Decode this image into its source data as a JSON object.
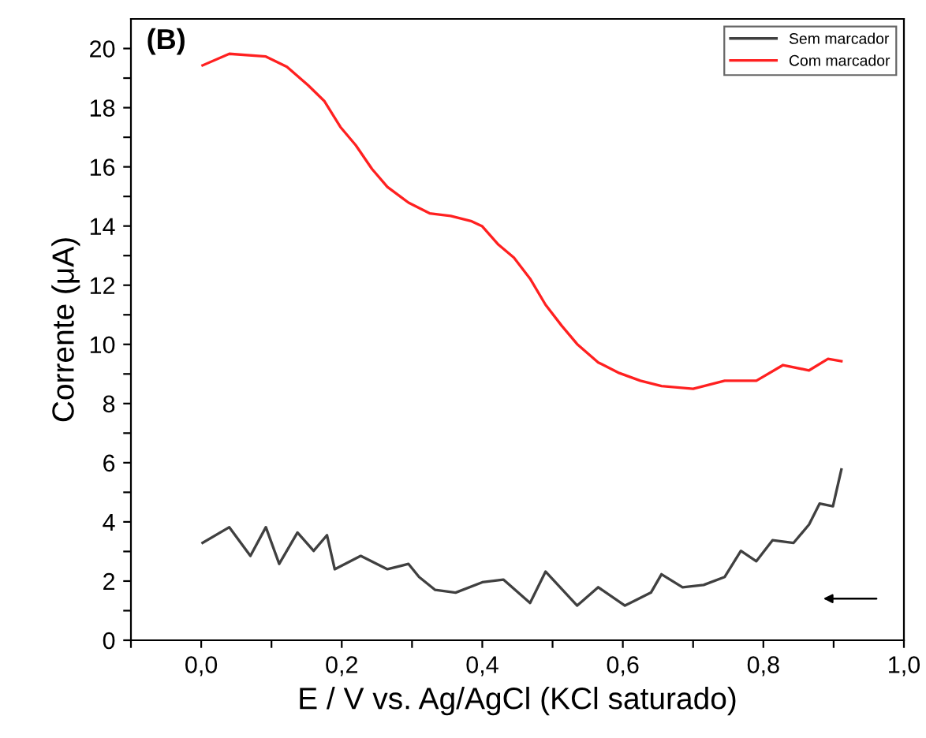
{
  "chart_data": {
    "type": "line",
    "xlabel": "E / V vs. Ag/AgCl (KCl saturado)",
    "ylabel": "Corrente (μA)",
    "annotations": [
      "(B)"
    ],
    "xlim": [
      -0.1,
      1.0
    ],
    "ylim": [
      0,
      21
    ],
    "xticks": [
      {
        "value": -0.1,
        "label": null
      },
      {
        "value": 0.0,
        "label": "0,0"
      },
      {
        "value": 0.1,
        "label": null
      },
      {
        "value": 0.2,
        "label": "0,2"
      },
      {
        "value": 0.3,
        "label": null
      },
      {
        "value": 0.4,
        "label": "0,4"
      },
      {
        "value": 0.5,
        "label": null
      },
      {
        "value": 0.6,
        "label": "0,6"
      },
      {
        "value": 0.7,
        "label": null
      },
      {
        "value": 0.8,
        "label": "0,8"
      },
      {
        "value": 0.9,
        "label": null
      },
      {
        "value": 1.0,
        "label": "1,0"
      }
    ],
    "yticks": [
      0,
      {
        "value": 1,
        "label": null
      },
      2,
      {
        "value": 3,
        "label": null
      },
      4,
      {
        "value": 5,
        "label": null
      },
      6,
      {
        "value": 7,
        "label": null
      },
      8,
      {
        "value": 9,
        "label": null
      },
      10,
      {
        "value": 11,
        "label": null
      },
      12,
      {
        "value": 13,
        "label": null
      },
      14,
      {
        "value": 15,
        "label": null
      },
      16,
      {
        "value": 17,
        "label": null
      },
      18,
      {
        "value": 19,
        "label": null
      },
      20
    ],
    "grid": false,
    "legend": "top right",
    "marker": "none",
    "line_style": "solid",
    "series": [
      {
        "name": "Sem marcador",
        "color": "#404040",
        "x": [
          0.002,
          0.04,
          0.07,
          0.092,
          0.111,
          0.137,
          0.16,
          0.179,
          0.19,
          0.227,
          0.265,
          0.295,
          0.31,
          0.333,
          0.362,
          0.4,
          0.43,
          0.468,
          0.49,
          0.535,
          0.565,
          0.603,
          0.64,
          0.655,
          0.685,
          0.715,
          0.745,
          0.768,
          0.79,
          0.813,
          0.843,
          0.865,
          0.88,
          0.899,
          0.911
        ],
        "values": [
          3.29,
          3.82,
          2.85,
          3.82,
          2.58,
          3.64,
          3.02,
          3.55,
          2.4,
          2.85,
          2.4,
          2.58,
          2.14,
          1.7,
          1.61,
          1.96,
          2.05,
          1.26,
          2.32,
          1.17,
          1.79,
          1.17,
          1.61,
          2.23,
          1.79,
          1.87,
          2.14,
          3.02,
          2.67,
          3.38,
          3.29,
          3.91,
          4.62,
          4.53,
          5.77
        ]
      },
      {
        "name": "Com marcador",
        "color": "#ff2020",
        "x": [
          0.002,
          0.04,
          0.092,
          0.122,
          0.152,
          0.175,
          0.198,
          0.22,
          0.243,
          0.265,
          0.295,
          0.325,
          0.355,
          0.385,
          0.4,
          0.423,
          0.445,
          0.468,
          0.49,
          0.513,
          0.535,
          0.565,
          0.595,
          0.625,
          0.655,
          0.7,
          0.745,
          0.79,
          0.828,
          0.865,
          0.892,
          0.911
        ],
        "values": [
          19.43,
          19.82,
          19.73,
          19.38,
          18.76,
          18.23,
          17.35,
          16.73,
          15.93,
          15.32,
          14.79,
          14.43,
          14.34,
          14.16,
          13.99,
          13.37,
          12.93,
          12.22,
          11.34,
          10.63,
          10.01,
          9.39,
          9.03,
          8.77,
          8.59,
          8.5,
          8.77,
          8.77,
          9.3,
          9.12,
          9.51,
          9.43
        ]
      }
    ]
  }
}
